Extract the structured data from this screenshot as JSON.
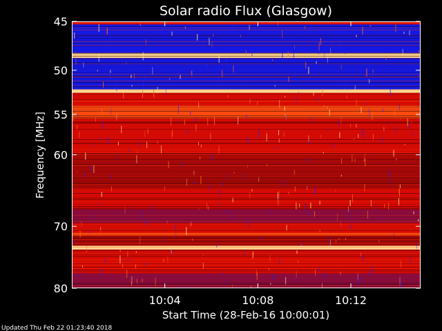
{
  "footer": {
    "updated": "Updated Thu Feb 22 01:23:40 2018"
  },
  "colors": {
    "background": "#000000",
    "axis": "#ffffff",
    "low_intensity": "#1a1aff",
    "mid_intensity": "#cc0000",
    "high_intensity": "#ffd070"
  },
  "chart_data": {
    "type": "heatmap",
    "title": "Solar radio Flux (Glasgow)",
    "xlabel": "Start Time (28-Feb-16 10:00:01)",
    "ylabel": "Frequency [MHz]",
    "x_unit": "minutes after 10:00:01",
    "xlim": [
      0,
      15
    ],
    "ylim": [
      45,
      80
    ],
    "y_inverted": true,
    "x_ticks": [
      {
        "value": 4,
        "label": "10:04"
      },
      {
        "value": 8,
        "label": "10:08"
      },
      {
        "value": 12,
        "label": "10:12"
      }
    ],
    "y_ticks": [
      {
        "value": 45,
        "label": "45"
      },
      {
        "value": 50,
        "label": "50"
      },
      {
        "value": 55,
        "label": "55"
      },
      {
        "value": 60,
        "label": "60"
      },
      {
        "value": 70,
        "label": "70"
      },
      {
        "value": 80,
        "label": "80"
      }
    ],
    "bands": [
      {
        "from": 45.0,
        "to": 45.3,
        "level": "mid"
      },
      {
        "from": 45.3,
        "to": 48.2,
        "level": "low"
      },
      {
        "from": 48.2,
        "to": 48.7,
        "level": "high"
      },
      {
        "from": 48.7,
        "to": 51.4,
        "level": "low"
      },
      {
        "from": 51.4,
        "to": 52.1,
        "level": "low"
      },
      {
        "from": 52.1,
        "to": 52.5,
        "level": "high"
      },
      {
        "from": 52.5,
        "to": 54.0,
        "level": "mid"
      },
      {
        "from": 54.0,
        "to": 55.5,
        "level": "mid-high"
      },
      {
        "from": 55.5,
        "to": 60.5,
        "level": "mid"
      },
      {
        "from": 60.5,
        "to": 64.5,
        "level": "mid-dark"
      },
      {
        "from": 64.5,
        "to": 67.5,
        "level": "mid"
      },
      {
        "from": 67.5,
        "to": 69.5,
        "level": "mixed"
      },
      {
        "from": 69.5,
        "to": 71.0,
        "level": "mid"
      },
      {
        "from": 71.0,
        "to": 71.4,
        "level": "mid-high"
      },
      {
        "from": 71.4,
        "to": 73.0,
        "level": "mid-dark"
      },
      {
        "from": 73.0,
        "to": 73.6,
        "level": "high"
      },
      {
        "from": 73.6,
        "to": 77.5,
        "level": "mid"
      },
      {
        "from": 77.5,
        "to": 80.0,
        "level": "mixed"
      }
    ]
  }
}
